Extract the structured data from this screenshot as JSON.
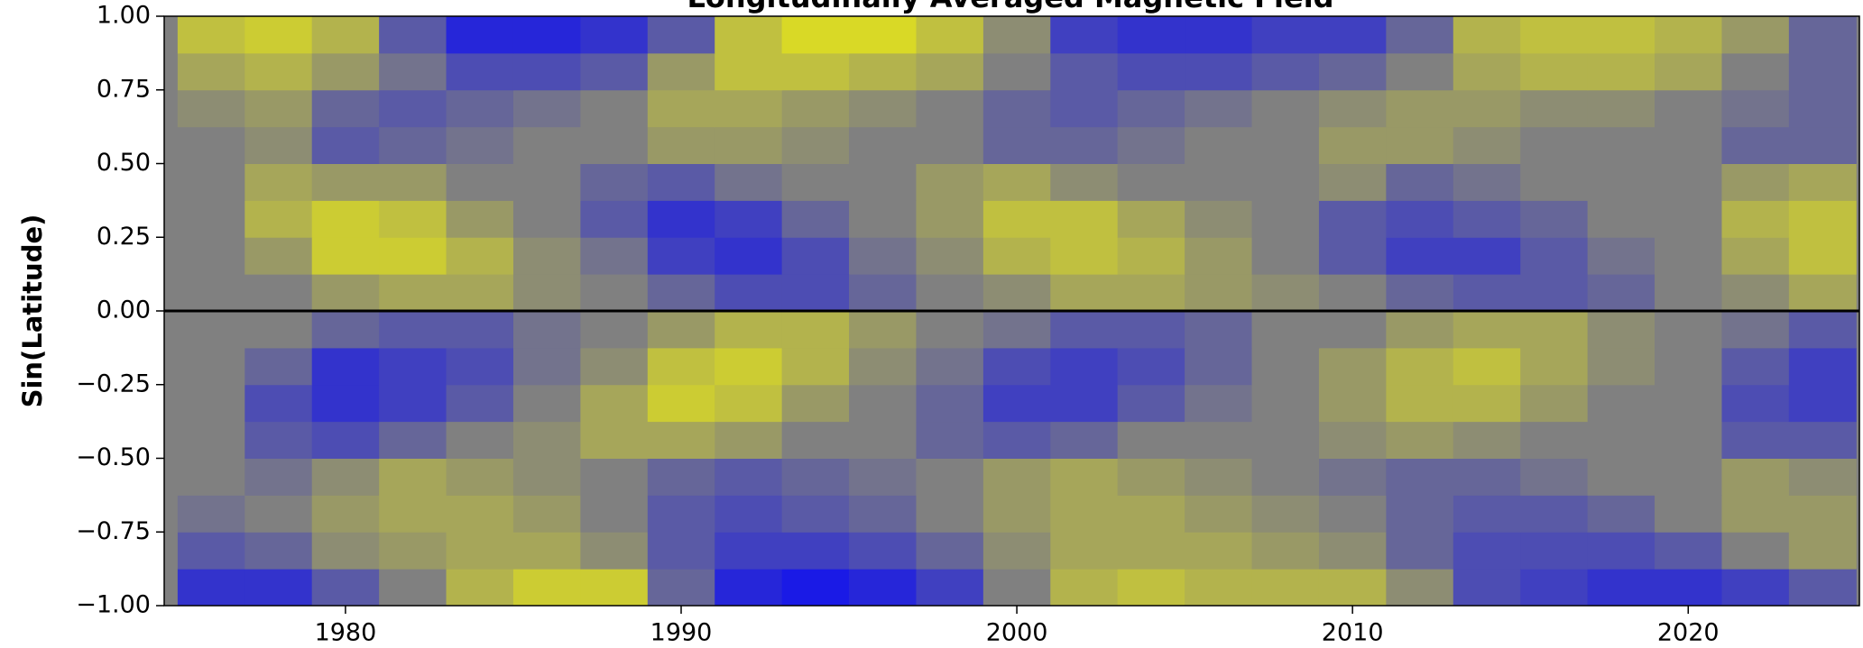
{
  "chart_data": {
    "type": "heatmap",
    "title": "Longitudinally Averaged Magnetic Field",
    "ylabel": "Sin(Latitude)",
    "xlim": [
      1974.6,
      2025.1
    ],
    "ylim": [
      -1,
      1
    ],
    "xticks": [
      1980,
      1990,
      2000,
      2010,
      2020
    ],
    "yticks": [
      {
        "value": -1,
        "label": "−1.00"
      },
      {
        "value": -0.75,
        "label": "−0.75"
      },
      {
        "value": -0.5,
        "label": "−0.50"
      },
      {
        "value": -0.25,
        "label": "−0.25"
      },
      {
        "value": 0,
        "label": "0.00"
      },
      0.25,
      {
        "value": 0.5,
        "label": "0.50"
      },
      0.75,
      {
        "value": 1,
        "label": "1.00"
      }
    ],
    "hlines": [
      0
    ],
    "colormap": [
      "#0000ff",
      "#808080",
      "#ffff00"
    ],
    "zlim": [
      -1,
      1
    ],
    "xbins": [
      1975,
      1977,
      1979,
      1981,
      1983,
      1985,
      1987,
      1989,
      1991,
      1993,
      1995,
      1997,
      1999,
      2001,
      2003,
      2005,
      2007,
      2009,
      2011,
      2013,
      2015,
      2017,
      2019,
      2021,
      2023,
      2025
    ],
    "ybins": [
      -1,
      -0.875,
      -0.75,
      -0.625,
      -0.5,
      -0.375,
      -0.25,
      -0.125,
      0,
      0.125,
      0.25,
      0.375,
      0.5,
      0.625,
      0.75,
      0.875,
      1
    ],
    "z": [
      [
        -0.6,
        -0.6,
        -0.3,
        0,
        0.4,
        0.6,
        0.6,
        -0.2,
        -0.7,
        -0.8,
        -0.7,
        -0.5,
        0,
        0.4,
        0.5,
        0.4,
        0.4,
        0.4,
        0.1,
        -0.4,
        -0.5,
        -0.6,
        -0.6,
        -0.5,
        -0.3
      ],
      [
        -0.3,
        -0.2,
        0.1,
        0.2,
        0.3,
        0.3,
        0.1,
        -0.3,
        -0.5,
        -0.5,
        -0.4,
        -0.2,
        0.1,
        0.3,
        0.3,
        0.3,
        0.2,
        0.1,
        -0.2,
        -0.4,
        -0.4,
        -0.4,
        -0.3,
        0,
        0.2
      ],
      [
        -0.1,
        0,
        0.2,
        0.3,
        0.3,
        0.2,
        0,
        -0.3,
        -0.4,
        -0.3,
        -0.2,
        0,
        0.2,
        0.3,
        0.3,
        0.2,
        0.1,
        0,
        -0.2,
        -0.3,
        -0.3,
        -0.2,
        0,
        0.2,
        0.2
      ],
      [
        0,
        -0.1,
        0.1,
        0.3,
        0.2,
        0.1,
        0,
        -0.2,
        -0.3,
        -0.2,
        -0.1,
        0,
        0.2,
        0.3,
        0.2,
        0.1,
        0,
        -0.1,
        -0.2,
        -0.2,
        -0.1,
        0,
        0,
        0.2,
        0.1
      ],
      [
        0,
        -0.3,
        -0.4,
        -0.2,
        0,
        0.1,
        0.3,
        0.3,
        0.2,
        0,
        0,
        -0.2,
        -0.3,
        -0.2,
        0,
        0,
        0,
        0.1,
        0.2,
        0.1,
        0,
        0,
        0,
        -0.3,
        -0.3
      ],
      [
        0,
        -0.4,
        -0.6,
        -0.5,
        -0.3,
        0,
        0.3,
        0.6,
        0.5,
        0.2,
        0,
        -0.2,
        -0.5,
        -0.5,
        -0.3,
        -0.1,
        0,
        0.2,
        0.4,
        0.4,
        0.2,
        0,
        0,
        -0.4,
        -0.5
      ],
      [
        0,
        -0.2,
        -0.6,
        -0.5,
        -0.4,
        -0.1,
        0.1,
        0.5,
        0.6,
        0.4,
        0.1,
        -0.1,
        -0.4,
        -0.5,
        -0.4,
        -0.2,
        0,
        0.2,
        0.4,
        0.5,
        0.3,
        0.1,
        0,
        -0.3,
        -0.5
      ],
      [
        0,
        0,
        -0.2,
        -0.3,
        -0.3,
        -0.1,
        0,
        0.2,
        0.4,
        0.4,
        0.2,
        0,
        -0.1,
        -0.3,
        -0.3,
        -0.2,
        0,
        0,
        0.2,
        0.3,
        0.3,
        0.1,
        0,
        -0.1,
        -0.3
      ],
      [
        0,
        0,
        0.2,
        0.3,
        0.3,
        0.1,
        0,
        -0.2,
        -0.4,
        -0.4,
        -0.2,
        0,
        0.1,
        0.3,
        0.3,
        0.2,
        0.1,
        0,
        -0.2,
        -0.3,
        -0.3,
        -0.2,
        0,
        0.1,
        0.3
      ],
      [
        0,
        0.2,
        0.6,
        0.6,
        0.4,
        0.1,
        -0.1,
        -0.5,
        -0.6,
        -0.4,
        -0.1,
        0.1,
        0.4,
        0.5,
        0.4,
        0.2,
        0,
        -0.3,
        -0.5,
        -0.5,
        -0.3,
        -0.1,
        0,
        0.3,
        0.5
      ],
      [
        0,
        0.4,
        0.6,
        0.5,
        0.2,
        0,
        -0.3,
        -0.6,
        -0.5,
        -0.2,
        0,
        0.2,
        0.5,
        0.5,
        0.3,
        0.1,
        0,
        -0.3,
        -0.4,
        -0.3,
        -0.2,
        0,
        0,
        0.4,
        0.5
      ],
      [
        0,
        0.3,
        0.2,
        0.2,
        0,
        0,
        -0.2,
        -0.3,
        -0.1,
        0,
        0,
        0.2,
        0.3,
        0.1,
        0,
        0,
        0,
        0.1,
        -0.2,
        -0.1,
        0,
        0,
        0,
        0.2,
        0.3
      ],
      [
        0,
        0.1,
        -0.3,
        -0.2,
        -0.1,
        0,
        0,
        0.2,
        0.2,
        0.1,
        0,
        0,
        -0.2,
        -0.2,
        -0.1,
        0,
        0,
        0.2,
        0.2,
        0.1,
        0,
        0,
        0,
        -0.2,
        -0.2
      ],
      [
        0.1,
        0.2,
        -0.2,
        -0.3,
        -0.2,
        -0.1,
        0,
        0.3,
        0.3,
        0.2,
        0.1,
        0,
        -0.2,
        -0.3,
        -0.2,
        -0.1,
        0,
        0.1,
        0.2,
        0.2,
        0.1,
        0.1,
        0,
        -0.1,
        -0.2
      ],
      [
        0.3,
        0.4,
        0.2,
        -0.1,
        -0.4,
        -0.4,
        -0.3,
        0.2,
        0.5,
        0.5,
        0.4,
        0.3,
        0,
        -0.3,
        -0.4,
        -0.4,
        -0.3,
        -0.2,
        0,
        0.3,
        0.4,
        0.4,
        0.3,
        0,
        -0.2
      ],
      [
        0.5,
        0.6,
        0.4,
        -0.3,
        -0.7,
        -0.7,
        -0.6,
        -0.3,
        0.5,
        0.7,
        0.7,
        0.5,
        0.1,
        -0.5,
        -0.6,
        -0.6,
        -0.5,
        -0.5,
        -0.2,
        0.4,
        0.5,
        0.5,
        0.4,
        0.2,
        -0.2
      ]
    ]
  }
}
